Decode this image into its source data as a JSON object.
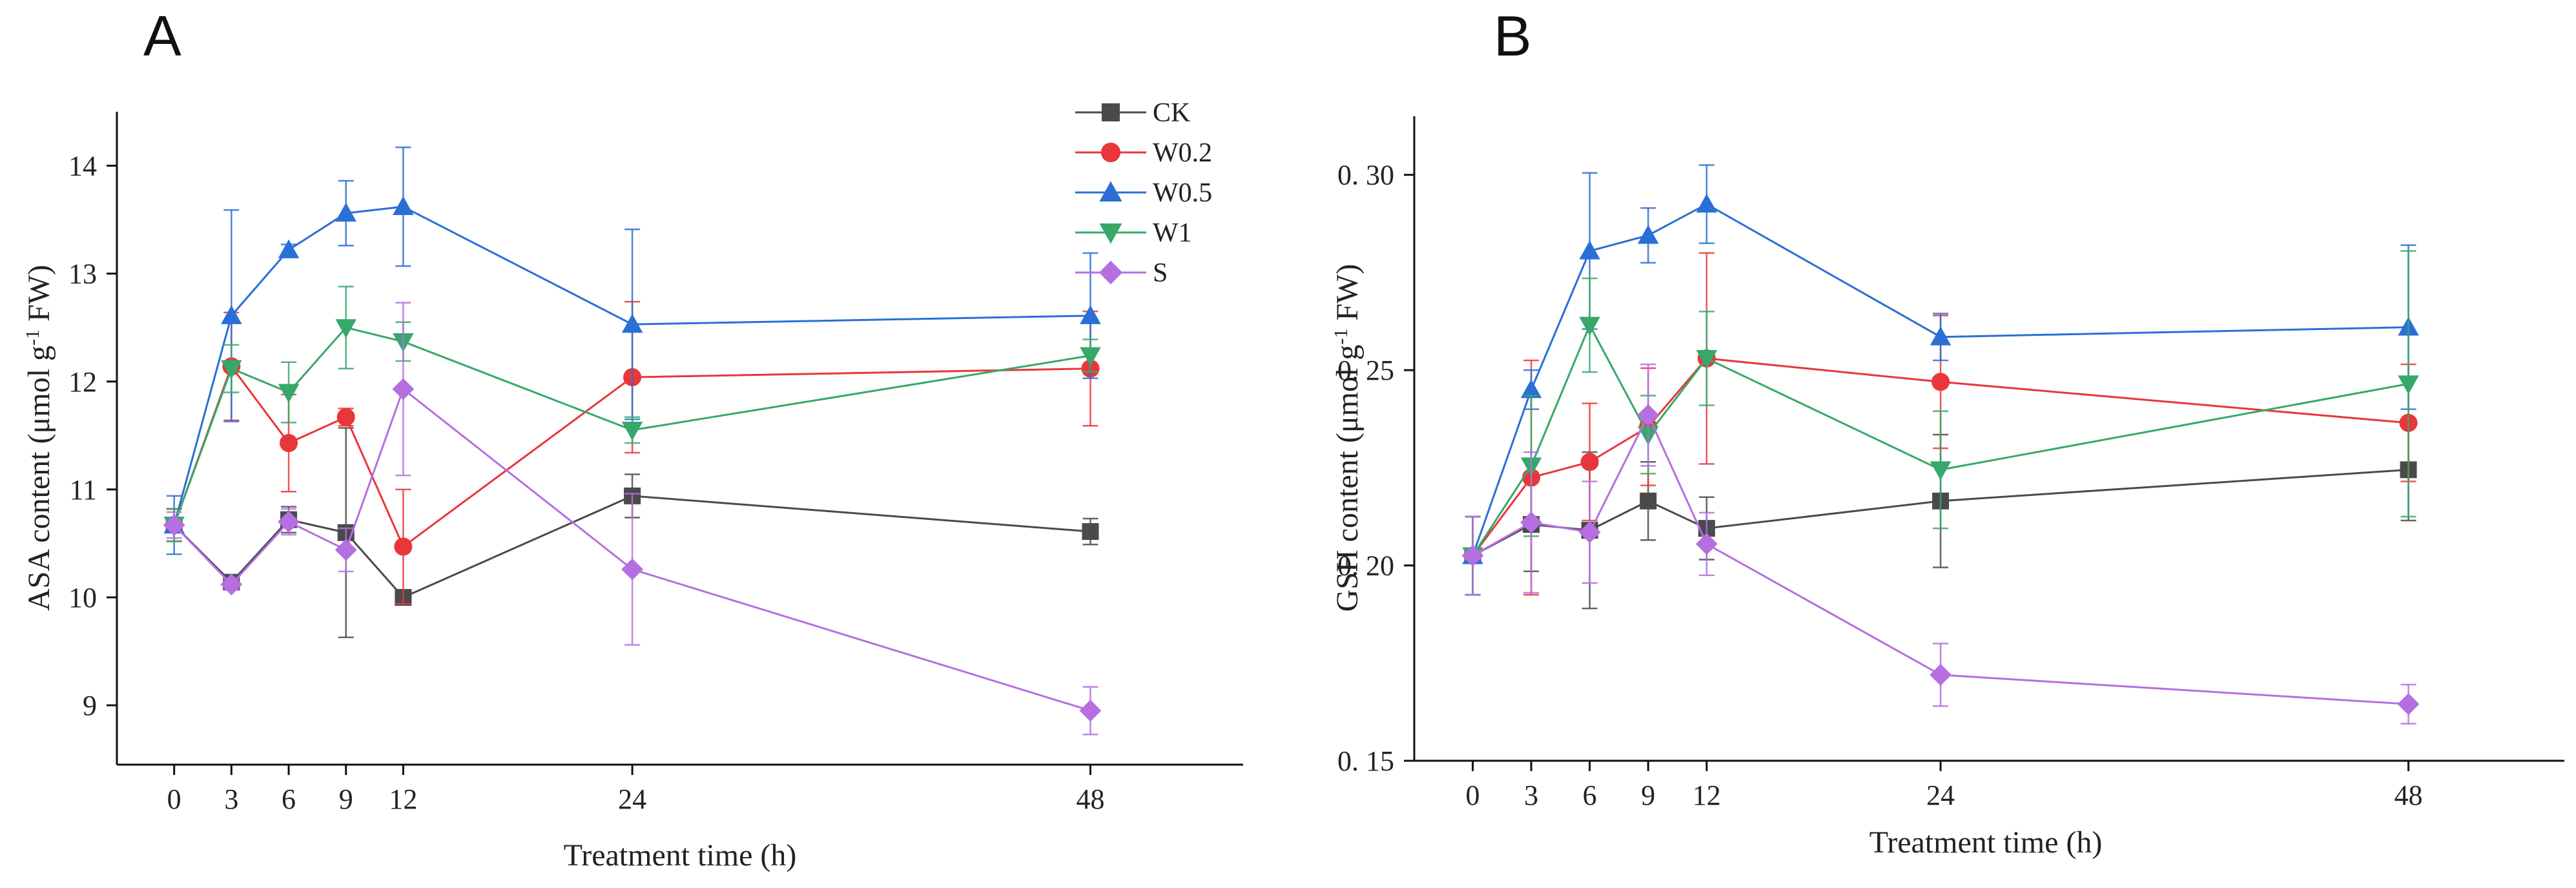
{
  "legend": {
    "items": [
      {
        "name": "CK",
        "color": "#4a4a4a",
        "marker": "square"
      },
      {
        "name": "W0.2",
        "color": "#e8373a",
        "marker": "circle"
      },
      {
        "name": "W0.5",
        "color": "#2a6fd6",
        "marker": "triangle-up"
      },
      {
        "name": "W1",
        "color": "#36a86a",
        "marker": "triangle-down"
      },
      {
        "name": "S",
        "color": "#b56fe0",
        "marker": "diamond"
      }
    ]
  },
  "chart_data": [
    {
      "panel": "A",
      "type": "line",
      "xlabel": "Treatment time (h)",
      "ylabel_main": "ASA content (μmol g",
      "ylabel_sup": "-1",
      "ylabel_tail": " FW)",
      "x": [
        0,
        3,
        6,
        9,
        12,
        24,
        48
      ],
      "x_ticks": [
        "0",
        "3",
        "6",
        "9",
        "12",
        "24",
        "48"
      ],
      "xlim": [
        -3,
        56
      ],
      "ylim": [
        8.45,
        14.5
      ],
      "y_ticks": [
        9,
        10,
        11,
        12,
        13,
        14
      ],
      "y_tick_labels": [
        "9",
        "10",
        "11",
        "12",
        "13",
        "14"
      ],
      "series": [
        {
          "name": "CK",
          "values": [
            10.67,
            10.14,
            10.72,
            10.6,
            10.0,
            10.94,
            10.61
          ],
          "errors": [
            0.15,
            0.05,
            0.12,
            0.97,
            0.03,
            0.2,
            0.12
          ]
        },
        {
          "name": "W0.2",
          "values": [
            10.67,
            12.14,
            11.43,
            11.67,
            10.47,
            12.04,
            12.12
          ],
          "errors": [
            0.15,
            0.5,
            0.45,
            0.08,
            0.53,
            0.7,
            0.53
          ]
        },
        {
          "name": "W0.5",
          "values": [
            10.67,
            12.61,
            13.22,
            13.56,
            13.62,
            12.53,
            12.61
          ],
          "errors": [
            0.27,
            0.98,
            0.05,
            0.3,
            0.55,
            0.88,
            0.58
          ]
        },
        {
          "name": "W1",
          "values": [
            10.67,
            12.12,
            11.9,
            12.5,
            12.37,
            11.55,
            12.24
          ],
          "errors": [
            0.15,
            0.22,
            0.28,
            0.38,
            0.18,
            0.12,
            0.15
          ]
        },
        {
          "name": "S",
          "values": [
            10.67,
            10.12,
            10.7,
            10.44,
            11.93,
            10.26,
            8.95
          ],
          "errors": [
            0.12,
            0.05,
            0.12,
            0.2,
            0.8,
            0.7,
            0.22
          ]
        }
      ]
    },
    {
      "panel": "B",
      "type": "line",
      "xlabel": "Treatment time (h)",
      "ylabel_main": "GSH content (μmol g",
      "ylabel_sup": "-1",
      "ylabel_tail": " FW)",
      "x": [
        0,
        3,
        6,
        9,
        12,
        24,
        48
      ],
      "x_ticks": [
        "0",
        "3",
        "6",
        "9",
        "12",
        "24",
        "48"
      ],
      "xlim": [
        -3,
        56
      ],
      "ylim": [
        0.15,
        0.315
      ],
      "y_ticks": [
        0.15,
        0.2,
        0.25,
        0.3
      ],
      "y_tick_labels": [
        "0. 15",
        "0. 20",
        "0. 25",
        "0. 30"
      ],
      "series": [
        {
          "name": "CK",
          "values": [
            0.2025,
            0.2105,
            0.209,
            0.2165,
            0.2095,
            0.2165,
            0.2245
          ],
          "errors": [
            0.01,
            0.012,
            0.02,
            0.01,
            0.008,
            0.017,
            0.013
          ]
        },
        {
          "name": "W0.2",
          "values": [
            0.2025,
            0.2225,
            0.2265,
            0.2355,
            0.253,
            0.247,
            0.2365
          ],
          "errors": [
            0.01,
            0.03,
            0.015,
            0.015,
            0.027,
            0.017,
            0.015
          ]
        },
        {
          "name": "W0.5",
          "values": [
            0.2025,
            0.245,
            0.2805,
            0.2845,
            0.2925,
            0.2585,
            0.261
          ],
          "errors": [
            0.01,
            0.005,
            0.02,
            0.007,
            0.01,
            0.006,
            0.021
          ]
        },
        {
          "name": "W1",
          "values": [
            0.2025,
            0.2255,
            0.2615,
            0.2335,
            0.253,
            0.2245,
            0.2465
          ],
          "errors": [
            0.01,
            0.018,
            0.012,
            0.01,
            0.012,
            0.015,
            0.034
          ]
        },
        {
          "name": "S",
          "values": [
            0.2025,
            0.211,
            0.2085,
            0.2385,
            0.2055,
            0.172,
            0.1645
          ],
          "errors": [
            0.01,
            0.018,
            0.013,
            0.013,
            0.008,
            0.008,
            0.005
          ]
        }
      ]
    }
  ]
}
